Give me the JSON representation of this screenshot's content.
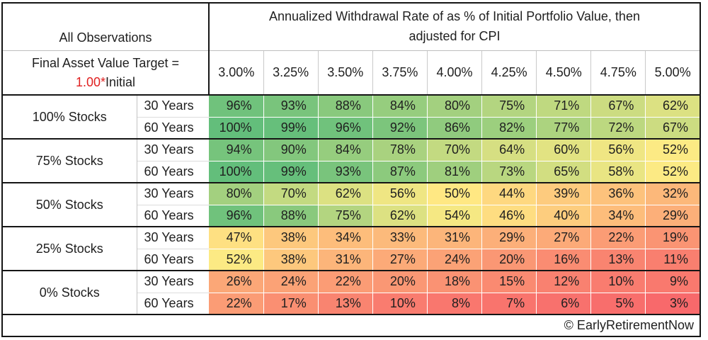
{
  "header": {
    "corner_label": "All Observations",
    "target_line1": "Final Asset Value Target =",
    "target_highlight": "1.00*",
    "target_suffix": "Initial",
    "title_line1": "Annualized Withdrawal Rate of as % of Initial Portfolio Value, then",
    "title_line2": "adjusted for CPI"
  },
  "footer": {
    "credit": "© EarlyRetirementNow"
  },
  "colors": {
    "highlight_red": "#E02020",
    "border_dark": "#151515"
  },
  "chart_data": {
    "type": "heatmap",
    "title": "Annualized Withdrawal Rate of as % of Initial Portfolio Value, then adjusted for CPI",
    "corner_label": "All Observations",
    "target_label": "Final Asset Value Target = 1.00*Initial",
    "unit": "%",
    "columns": [
      "3.00%",
      "3.25%",
      "3.50%",
      "3.75%",
      "4.00%",
      "4.25%",
      "4.50%",
      "4.75%",
      "5.00%"
    ],
    "row_groups": [
      {
        "label": "100% Stocks",
        "rows": [
          {
            "label": "30 Years",
            "values": [
              96,
              93,
              88,
              84,
              80,
              75,
              71,
              67,
              62
            ]
          },
          {
            "label": "60 Years",
            "values": [
              100,
              99,
              96,
              92,
              86,
              82,
              77,
              72,
              67
            ]
          }
        ]
      },
      {
        "label": "75% Stocks",
        "rows": [
          {
            "label": "30 Years",
            "values": [
              94,
              90,
              84,
              78,
              70,
              64,
              60,
              56,
              52
            ]
          },
          {
            "label": "60 Years",
            "values": [
              100,
              99,
              93,
              87,
              81,
              73,
              65,
              58,
              52
            ]
          }
        ]
      },
      {
        "label": "50% Stocks",
        "rows": [
          {
            "label": "30 Years",
            "values": [
              80,
              70,
              62,
              56,
              50,
              44,
              39,
              36,
              32
            ]
          },
          {
            "label": "60 Years",
            "values": [
              96,
              88,
              75,
              62,
              54,
              46,
              40,
              34,
              29
            ]
          }
        ]
      },
      {
        "label": "25% Stocks",
        "rows": [
          {
            "label": "30 Years",
            "values": [
              47,
              38,
              34,
              33,
              31,
              29,
              27,
              22,
              19
            ]
          },
          {
            "label": "60 Years",
            "values": [
              52,
              38,
              31,
              27,
              24,
              20,
              16,
              13,
              11
            ]
          }
        ]
      },
      {
        "label": "0% Stocks",
        "rows": [
          {
            "label": "30 Years",
            "values": [
              26,
              24,
              22,
              20,
              18,
              15,
              12,
              10,
              9
            ]
          },
          {
            "label": "60 Years",
            "values": [
              22,
              17,
              13,
              10,
              8,
              7,
              6,
              5,
              3
            ]
          }
        ]
      }
    ],
    "color_scale": {
      "min_value": 3,
      "mid_value": 51,
      "max_value": 100,
      "min_color": "#F8696B",
      "mid_color": "#FFEB84",
      "max_color": "#63BE7B"
    },
    "legend_position": "none",
    "grid": false
  }
}
